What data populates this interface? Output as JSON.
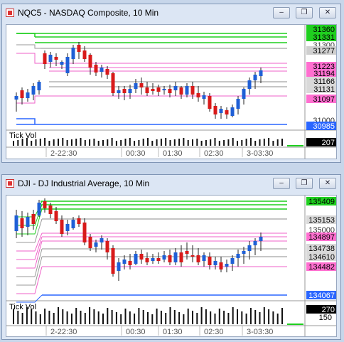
{
  "windows": [
    {
      "title": "NQC5 - NASDAQ Composite, 10 Min",
      "buttons": [
        "minimize",
        "restore",
        "close"
      ],
      "price_labels": [
        "31360",
        "31331",
        "31300",
        "31277",
        "31223",
        "31194",
        "31166",
        "31131",
        "31097",
        "31000",
        "30985"
      ],
      "indicator_label": "Tick Vol",
      "indicator_value": "207",
      "time_labels": [
        "2-22:30",
        "00:30",
        "01:30",
        "02:30",
        "3-03:30"
      ]
    },
    {
      "title": "DJI - DJ Industrial Average, 10 Min",
      "buttons": [
        "minimize",
        "restore",
        "close"
      ],
      "price_labels": [
        "135409",
        "135153",
        "135000",
        "134897",
        "134738",
        "134610",
        "134482",
        "134067"
      ],
      "indicator_label": "Tick Vol",
      "indicator_value": "270",
      "indicator_value2": "150",
      "time_labels": [
        "2-22:30",
        "00:30",
        "01:30",
        "02:30",
        "3-03:30"
      ]
    }
  ],
  "colors": {
    "up_candle": "#1f5fd6",
    "down_candle": "#d81a1a",
    "green_level": "#1fcf1f",
    "pink_level": "#ef60c8",
    "blue_level": "#2a66ff",
    "gray_level": "#8c8c8c"
  }
}
